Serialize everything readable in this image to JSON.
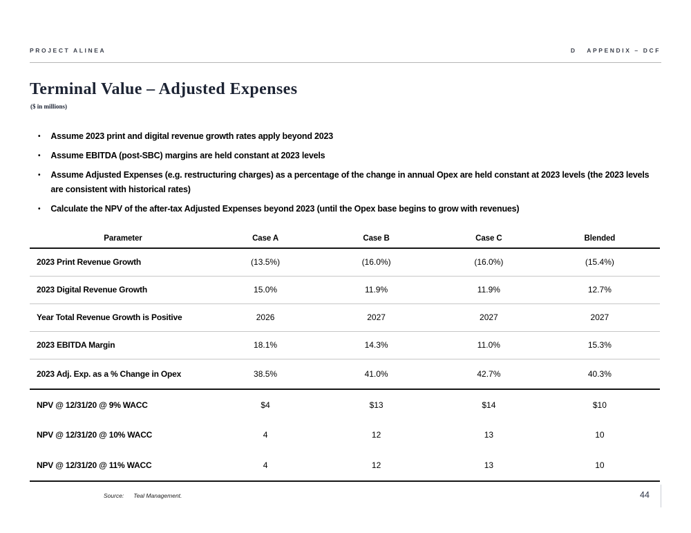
{
  "header": {
    "left": "PROJECT ALINEA",
    "right": "D   APPENDIX – DCF"
  },
  "title": "Terminal Value – Adjusted Expenses",
  "subtitle": "($ in millions)",
  "bullet_marker": "•",
  "bullets": [
    "Assume 2023 print and digital revenue growth rates apply beyond 2023",
    "Assume EBITDA (post-SBC) margins are held constant at 2023 levels",
    "Assume Adjusted Expenses (e.g. restructuring charges) as a percentage of the change in annual Opex are held constant at 2023 levels (the 2023 levels are consistent with historical rates)",
    "Calculate the NPV of the after-tax Adjusted Expenses beyond 2023 (until the Opex base begins to grow with revenues)"
  ],
  "table": {
    "columns": [
      "Parameter",
      "Case A",
      "Case B",
      "Case C",
      "Blended"
    ],
    "rows": [
      {
        "label": "2023 Print Revenue Growth",
        "values": [
          "(13.5%)",
          "(16.0%)",
          "(16.0%)",
          "(15.4%)"
        ],
        "group": "metrics"
      },
      {
        "label": "2023 Digital Revenue Growth",
        "values": [
          "15.0%",
          "11.9%",
          "11.9%",
          "12.7%"
        ],
        "group": "metrics"
      },
      {
        "label": "Year Total Revenue Growth is Positive",
        "values": [
          "2026",
          "2027",
          "2027",
          "2027"
        ],
        "group": "metrics"
      },
      {
        "label": "2023 EBITDA Margin",
        "values": [
          "18.1%",
          "14.3%",
          "11.0%",
          "15.3%"
        ],
        "group": "metrics"
      },
      {
        "label": "2023 Adj. Exp. as a % Change in Opex",
        "values": [
          "38.5%",
          "41.0%",
          "42.7%",
          "40.3%"
        ],
        "group": "metrics"
      },
      {
        "label": "NPV @ 12/31/20 @ 9% WACC",
        "values": [
          "$4",
          "$13",
          "$14",
          "$10"
        ],
        "group": "npv"
      },
      {
        "label": "NPV @ 12/31/20 @ 10% WACC",
        "values": [
          "4",
          "12",
          "13",
          "10"
        ],
        "group": "npv"
      },
      {
        "label": "NPV @ 12/31/20 @ 11% WACC",
        "values": [
          "4",
          "12",
          "13",
          "10"
        ],
        "group": "npv"
      }
    ]
  },
  "footer": {
    "source_label": "Source:",
    "source_text": "Teal Management.",
    "page_number": "44"
  },
  "colors": {
    "title_navy": "#1c2333",
    "header_gray": "#3a3f4b",
    "rule_gray": "#b5b5b5",
    "divider_gray": "#c6c6c6",
    "line_black": "#141414",
    "page_number_navy": "#2e3547"
  }
}
